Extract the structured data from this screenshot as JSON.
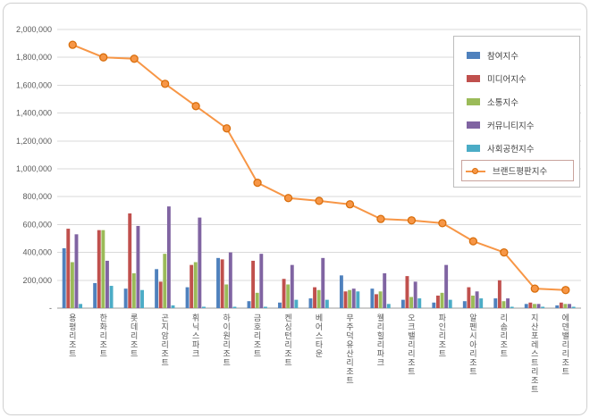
{
  "chart_data": {
    "type": "bar+line",
    "title": "",
    "categories": [
      "용평리조트",
      "한화리조트",
      "롯데리조트",
      "곤지암리조트",
      "휘닉스파크",
      "하이원리조트",
      "금호리조트",
      "켄싱턴리조트",
      "베어스타운",
      "무주덕유산리조트",
      "웰리힐리파크",
      "오크밸리리조트",
      "파인리조트",
      "알펜시아리조트",
      "리솜리조트",
      "지산포레스트리조트",
      "에덴밸리리조트"
    ],
    "series": [
      {
        "name": "참여지수",
        "type": "bar",
        "color": "#4f81bd",
        "values": [
          430000,
          180000,
          140000,
          280000,
          150000,
          360000,
          50000,
          40000,
          70000,
          235000,
          140000,
          60000,
          40000,
          50000,
          70000,
          30000,
          20000
        ]
      },
      {
        "name": "미디어지수",
        "type": "bar",
        "color": "#c0504d",
        "values": [
          570000,
          560000,
          680000,
          190000,
          310000,
          350000,
          340000,
          210000,
          150000,
          120000,
          100000,
          230000,
          90000,
          150000,
          200000,
          40000,
          40000
        ]
      },
      {
        "name": "소통지수",
        "type": "bar",
        "color": "#9bbb59",
        "values": [
          330000,
          560000,
          250000,
          390000,
          330000,
          170000,
          110000,
          170000,
          130000,
          130000,
          120000,
          80000,
          110000,
          90000,
          50000,
          30000,
          30000
        ]
      },
      {
        "name": "커뮤니티지수",
        "type": "bar",
        "color": "#8064a2",
        "values": [
          530000,
          340000,
          590000,
          730000,
          650000,
          400000,
          390000,
          310000,
          360000,
          140000,
          250000,
          190000,
          310000,
          120000,
          70000,
          30000,
          30000
        ]
      },
      {
        "name": "사회공헌지수",
        "type": "bar",
        "color": "#4bacc6",
        "values": [
          30000,
          160000,
          130000,
          20000,
          10000,
          10000,
          10000,
          60000,
          60000,
          120000,
          30000,
          70000,
          60000,
          70000,
          10000,
          10000,
          10000
        ]
      },
      {
        "name": "브랜드평판지수",
        "type": "line",
        "color": "#f79646",
        "marker_stroke": "#d86e0c",
        "values": [
          1890000,
          1800000,
          1790000,
          1610000,
          1450000,
          1290000,
          900000,
          790000,
          770000,
          745000,
          640000,
          630000,
          610000,
          480000,
          400000,
          140000,
          130000
        ]
      }
    ],
    "y_axis": {
      "min": 0,
      "max": 2000000,
      "step": 200000,
      "zero_label": "-"
    },
    "x_axis_label_orientation": "vertical",
    "grid": true,
    "legend_position": "right-top",
    "colors": {
      "grid": "#d9d9d9",
      "axis": "#9b9b9b",
      "tick_text": "#595959",
      "legend_border": "#bdbdbd",
      "frame_border": "#cfcfcf",
      "background": "#ffffff"
    }
  }
}
